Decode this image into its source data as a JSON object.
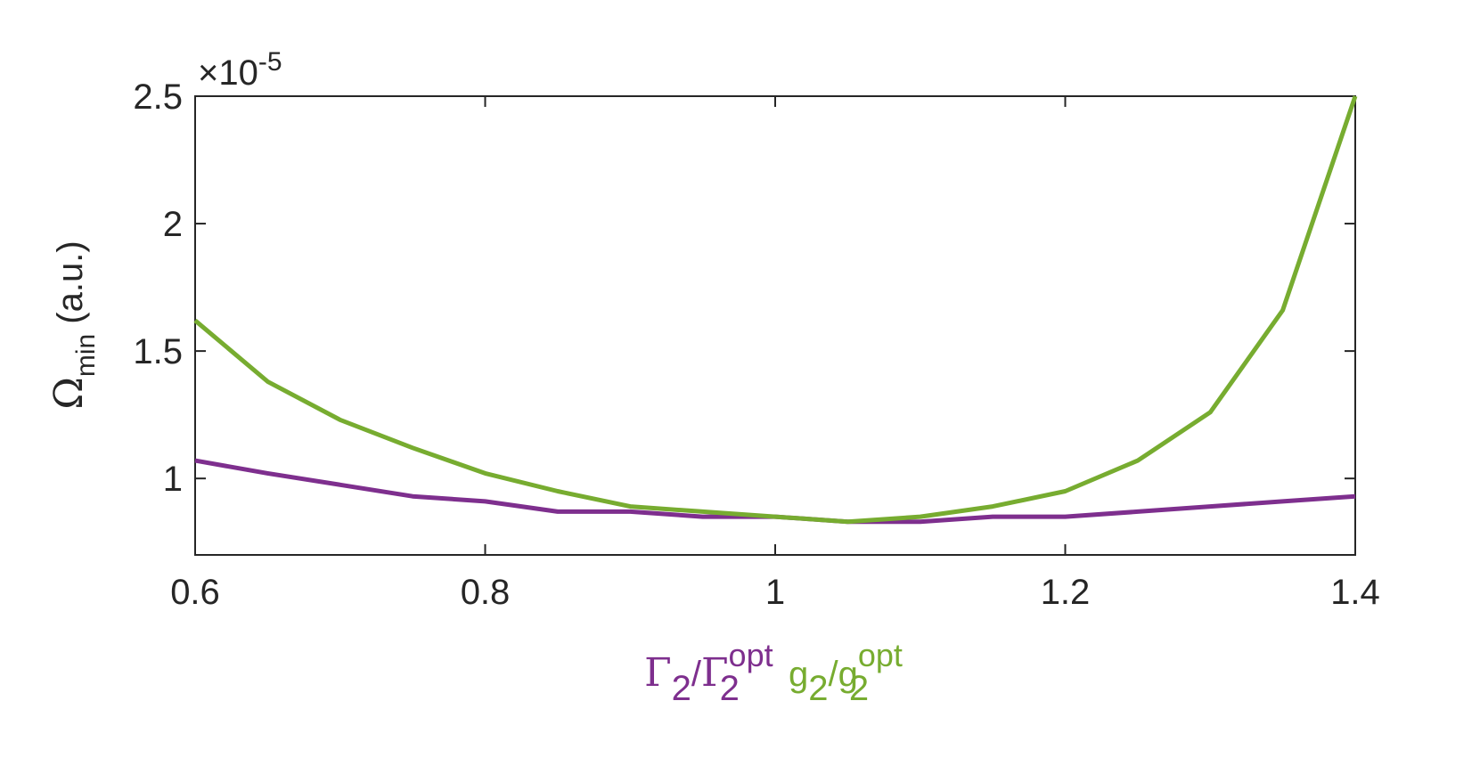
{
  "chart_data": {
    "type": "line",
    "title": "",
    "xlim": [
      0.6,
      1.4
    ],
    "ylim": [
      0.7,
      2.5
    ],
    "y_exponent_label": "×10",
    "y_exponent_value": "-5",
    "x_ticks": [
      {
        "value": 0.6,
        "label": "0.6"
      },
      {
        "value": 0.8,
        "label": "0.8"
      },
      {
        "value": 1.0,
        "label": "1"
      },
      {
        "value": 1.2,
        "label": "1.2"
      },
      {
        "value": 1.4,
        "label": "1.4"
      }
    ],
    "y_ticks": [
      {
        "value": 1.0,
        "label": "1"
      },
      {
        "value": 1.5,
        "label": "1.5"
      },
      {
        "value": 2.0,
        "label": "2"
      },
      {
        "value": 2.5,
        "label": "2.5"
      }
    ],
    "ylabel": {
      "symbol": "Ω",
      "subscript": "min",
      "suffix": " (a.u.)"
    },
    "xlabel": {
      "purple_part": {
        "base": "Γ",
        "sub": "2",
        "slash": "/",
        "base2": "Γ",
        "sup2": "opt",
        "sub2": "2"
      },
      "green_part": {
        "base": "g",
        "sub": "2",
        "slash": "/",
        "base2": "g",
        "sup2": "opt",
        "sub2": "2"
      }
    },
    "series": [
      {
        "color": "#7E2F8E",
        "x": [
          0.6,
          0.65,
          0.7,
          0.75,
          0.8,
          0.85,
          0.9,
          0.95,
          1.0,
          1.05,
          1.1,
          1.15,
          1.2,
          1.25,
          1.3,
          1.35,
          1.4
        ],
        "y": [
          1.07,
          1.02,
          0.975,
          0.93,
          0.91,
          0.87,
          0.87,
          0.85,
          0.85,
          0.83,
          0.83,
          0.85,
          0.85,
          0.87,
          0.89,
          0.91,
          0.93
        ]
      },
      {
        "color": "#77AC30",
        "x": [
          0.6,
          0.65,
          0.7,
          0.75,
          0.8,
          0.85,
          0.9,
          0.95,
          1.0,
          1.05,
          1.1,
          1.15,
          1.2,
          1.25,
          1.3,
          1.35,
          1.4
        ],
        "y": [
          1.62,
          1.38,
          1.23,
          1.12,
          1.02,
          0.95,
          0.89,
          0.87,
          0.85,
          0.83,
          0.85,
          0.89,
          0.95,
          1.07,
          1.26,
          1.66,
          2.5
        ]
      }
    ]
  }
}
